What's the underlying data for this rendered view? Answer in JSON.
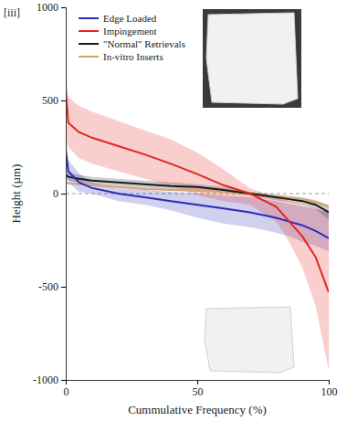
{
  "chart_data": {
    "type": "line",
    "panel_label": "[iii]",
    "x_label": "Cummulative Frequency (%)",
    "y_label": "Height (µm)",
    "x": [
      0,
      1,
      5,
      10,
      20,
      30,
      40,
      50,
      60,
      70,
      80,
      85,
      90,
      95,
      100
    ],
    "xlim": [
      0,
      100
    ],
    "xticks": [
      0,
      50,
      100
    ],
    "ylim": [
      -1000,
      1000
    ],
    "yticks": [
      -1000,
      -500,
      0,
      500,
      1000
    ],
    "hline": 0,
    "grid": false,
    "legend": "upper left",
    "marker": "none",
    "line_style": "solid",
    "series": [
      {
        "name": "Edge Loaded",
        "color": "#2b2bb8",
        "values": [
          230,
          120,
          60,
          30,
          0,
          -20,
          -40,
          -60,
          -80,
          -100,
          -130,
          -150,
          -170,
          -200,
          -240
        ],
        "upper": [
          330,
          180,
          110,
          60,
          30,
          20,
          10,
          0,
          -10,
          -20,
          -40,
          -55,
          -70,
          -85,
          -100
        ],
        "lower": [
          130,
          60,
          10,
          0,
          -40,
          -60,
          -90,
          -130,
          -160,
          -180,
          -210,
          -230,
          -260,
          -280,
          -310
        ]
      },
      {
        "name": "Impingement",
        "color": "#e3261c",
        "values": [
          550,
          380,
          330,
          300,
          255,
          210,
          160,
          105,
          45,
          0,
          -70,
          -150,
          -230,
          -340,
          -530
        ],
        "upper": [
          680,
          520,
          470,
          440,
          390,
          340,
          290,
          220,
          130,
          30,
          -20,
          -40,
          -60,
          -80,
          -100
        ],
        "lower": [
          300,
          250,
          190,
          160,
          120,
          80,
          40,
          -10,
          -40,
          -60,
          -150,
          -260,
          -400,
          -600,
          -950
        ]
      },
      {
        "name": "\"Normal\" Retrievals",
        "color": "#1a1a1a",
        "values": [
          100,
          90,
          80,
          70,
          60,
          50,
          40,
          35,
          20,
          0,
          -20,
          -30,
          -40,
          -60,
          -100
        ],
        "upper": [
          120,
          110,
          100,
          90,
          80,
          70,
          60,
          50,
          35,
          10,
          -5,
          -15,
          -20,
          -35,
          -60
        ],
        "lower": [
          80,
          70,
          60,
          50,
          40,
          30,
          20,
          20,
          5,
          -10,
          -35,
          -45,
          -60,
          -85,
          -140
        ]
      },
      {
        "name": "In-vitro Inserts",
        "color": "#d4a56a",
        "values": [
          60,
          55,
          50,
          45,
          35,
          25,
          20,
          15,
          10,
          0,
          -15,
          -20,
          -30,
          -45,
          -70
        ]
      }
    ]
  }
}
